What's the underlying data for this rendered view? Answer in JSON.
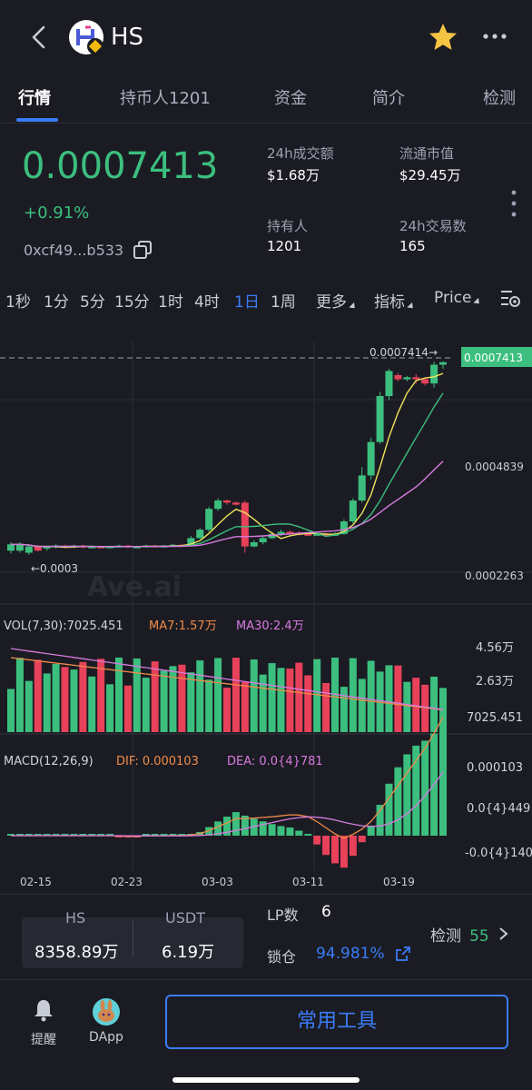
{
  "header": {
    "title": "HS",
    "back_icon": "chevron-left-icon",
    "star_icon": "star-icon",
    "more_icon": "more-dots-icon"
  },
  "tabs": [
    {
      "label": "行情",
      "active": true
    },
    {
      "label": "持币人1201",
      "active": false
    },
    {
      "label": "资金",
      "active": false
    },
    {
      "label": "简介",
      "active": false
    },
    {
      "label": "检测",
      "active": false
    }
  ],
  "token": {
    "price": "0.0007413",
    "change": "+0.91%",
    "address": "0xcf49...b533",
    "accent": "#3cbf7e"
  },
  "stats": {
    "volume_label": "24h成交额",
    "volume_value": "$1.68万",
    "mcap_label": "流通市值",
    "mcap_value": "$29.45万",
    "holders_label": "持有人",
    "holders_value": "1201",
    "txns_label": "24h交易数",
    "txns_value": "165"
  },
  "intervals": {
    "items": [
      "1秒",
      "1分",
      "5分",
      "15分",
      "1时",
      "4时",
      "1日",
      "1周"
    ],
    "active": "1日",
    "more": "更多",
    "indicators": "指标",
    "price_mode": "Price"
  },
  "chart_data": {
    "type": "candlestick",
    "x_ticks": [
      "02-15",
      "02-23",
      "03-03",
      "03-11",
      "03-19"
    ],
    "price_axis": [
      "0.0004839",
      "0.0002263"
    ],
    "current_price_tag": "0.0007413",
    "high_marker": "0.0007414→",
    "low_marker": "←0.0003",
    "watermark": "Ave.ai",
    "candles": [
      [
        0.00029,
        0.000305,
        0.000283,
        0.00031
      ],
      [
        0.00029,
        0.000305,
        0.000285,
        0.00031
      ],
      [
        0.000285,
        0.0003,
        0.00028,
        0.000302
      ],
      [
        0.0003,
        0.00029,
        0.000288,
        0.000303
      ],
      [
        0.000295,
        0.0003,
        0.00029,
        0.000302
      ],
      [
        0.0003,
        0.000302,
        0.000295,
        0.000305
      ],
      [
        0.000302,
        0.000298,
        0.000296,
        0.000304
      ],
      [
        0.000298,
        0.000302,
        0.000296,
        0.000304
      ],
      [
        0.000302,
        0.000298,
        0.000295,
        0.000304
      ],
      [
        0.000298,
        0.0003,
        0.000296,
        0.000302
      ],
      [
        0.0003,
        0.000298,
        0.000296,
        0.000302
      ],
      [
        0.000298,
        0.0003,
        0.000296,
        0.000302
      ],
      [
        0.0003,
        0.000302,
        0.000298,
        0.000304
      ],
      [
        0.000302,
        0.000298,
        0.000296,
        0.000304
      ],
      [
        0.000298,
        0.0003,
        0.000296,
        0.000302
      ],
      [
        0.0003,
        0.000302,
        0.000298,
        0.000304
      ],
      [
        0.000302,
        0.0003,
        0.000298,
        0.000304
      ],
      [
        0.0003,
        0.000302,
        0.000298,
        0.000304
      ],
      [
        0.000302,
        0.000304,
        0.0003,
        0.000306
      ],
      [
        0.000304,
        0.000302,
        0.0003,
        0.000306
      ],
      [
        0.000305,
        0.00032,
        0.000302,
        0.000325
      ],
      [
        0.00032,
        0.00034,
        0.000318,
        0.000345
      ],
      [
        0.00034,
        0.00039,
        0.000335,
        0.000395
      ],
      [
        0.00039,
        0.00041,
        0.000385,
        0.000415
      ],
      [
        0.00041,
        0.000405,
        0.0004,
        0.000412
      ],
      [
        0.000405,
        0.0004,
        0.000398,
        0.000408
      ],
      [
        0.000405,
        0.0003,
        0.000285,
        0.00041
      ],
      [
        0.0003,
        0.00031,
        0.000298,
        0.000315
      ],
      [
        0.00031,
        0.00032,
        0.000305,
        0.000325
      ],
      [
        0.00032,
        0.00033,
        0.000318,
        0.000335
      ],
      [
        0.00033,
        0.000335,
        0.000325,
        0.00034
      ],
      [
        0.000335,
        0.000332,
        0.000328,
        0.000338
      ],
      [
        0.000332,
        0.00033,
        0.000326,
        0.000336
      ],
      [
        0.00033,
        0.000328,
        0.000325,
        0.000334
      ],
      [
        0.000328,
        0.00033,
        0.000326,
        0.000333
      ],
      [
        0.00033,
        0.000328,
        0.000325,
        0.000332
      ],
      [
        0.000328,
        0.00033,
        0.000325,
        0.000334
      ],
      [
        0.00033,
        0.00036,
        0.000328,
        0.000365
      ],
      [
        0.00036,
        0.00041,
        0.000355,
        0.000415
      ],
      [
        0.00041,
        0.00047,
        0.000405,
        0.00049
      ],
      [
        0.00047,
        0.00055,
        0.00046,
        0.00056
      ],
      [
        0.00055,
        0.00066,
        0.000545,
        0.00067
      ],
      [
        0.00066,
        0.00072,
        0.00065,
        0.000725
      ],
      [
        0.00071,
        0.0007,
        0.000695,
        0.000715
      ],
      [
        0.0007,
        0.000705,
        0.000695,
        0.000708
      ],
      [
        0.000705,
        0.0007,
        0.00069,
        0.000712
      ],
      [
        0.0007,
        0.00069,
        0.000685,
        0.000705
      ],
      [
        0.00069,
        0.000735,
        0.00068,
        0.000742
      ],
      [
        0.000735,
        0.000741,
        0.000725,
        0.000743
      ]
    ],
    "volume": {
      "label": "VOL(7,30):7025.451",
      "ma7": "MA7:1.57万",
      "ma30": "MA30:2.4万",
      "axis": [
        "4.56万",
        "2.63万",
        "7025.451"
      ]
    },
    "macd": {
      "label": "MACD(12,26,9)",
      "dif": "DIF: 0.000103",
      "dea": "DEA: 0.0{4}781",
      "axis": [
        "0.000103",
        "0.0{4}449",
        "-0.0{4}140"
      ]
    }
  },
  "pool": {
    "base_label": "HS",
    "base_value": "8358.89万",
    "quote_label": "USDT",
    "quote_value": "6.19万",
    "lp_label": "LP数",
    "lp_value": "6",
    "lock_label": "锁仓",
    "lock_value": "94.981%",
    "check_label": "检测",
    "check_score": "55"
  },
  "footer": {
    "alert_label": "提醒",
    "dapp_label": "DApp",
    "tools_label": "常用工具"
  }
}
